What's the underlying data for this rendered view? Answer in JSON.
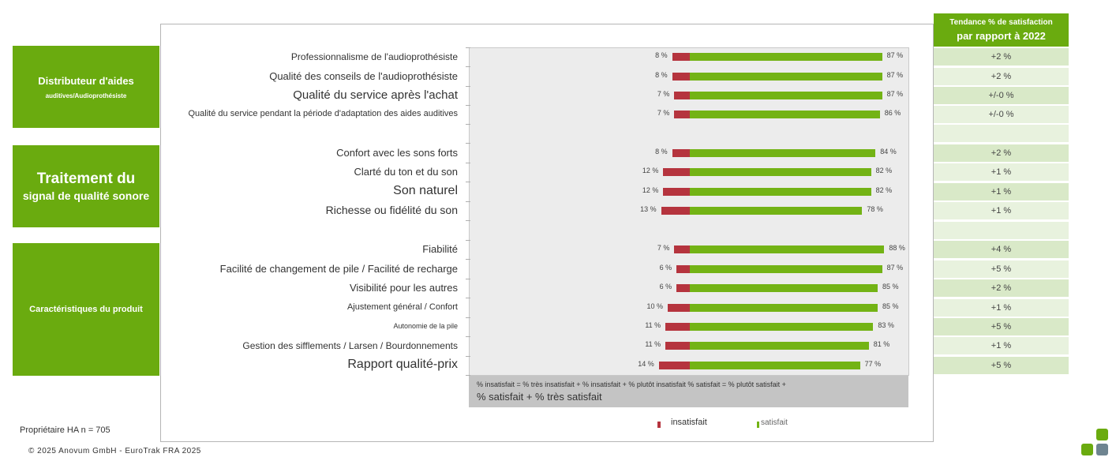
{
  "sections": [
    {
      "line1": "Distributeur d'aides",
      "line2": "auditives/Audioprothésiste"
    },
    {
      "line1": "Traitement du",
      "line2": "signal de qualité sonore"
    },
    {
      "line1": "Caractéristiques du produit",
      "line2": ""
    }
  ],
  "trend_header": {
    "line1": "Tendance % de satisfaction",
    "line2": "par rapport à 2022"
  },
  "chart_data": {
    "type": "bar",
    "orientation": "horizontal",
    "stacked": "diverging",
    "categories": [
      "Professionnalisme de l'audioprothésiste",
      "Qualité des conseils de l'audioprothésiste",
      "Qualité du service après l'achat",
      "Qualité du service pendant la période d'adaptation des aides auditives",
      "Confort avec les sons forts",
      "Clarté du ton et du son",
      "Son naturel",
      "Richesse ou fidélité du son",
      "Fiabilité",
      "Facilité de changement de pile / Facilité de recharge",
      "Visibilité pour les autres",
      "Ajustement général / Confort",
      "Autonomie de la pile",
      "Gestion des sifflements / Larsen / Bourdonnements",
      "Rapport qualité-prix"
    ],
    "series": [
      {
        "name": "insatisfait",
        "color": "#b5343e",
        "values": [
          8,
          8,
          7,
          7,
          8,
          12,
          12,
          13,
          7,
          6,
          6,
          10,
          11,
          11,
          14
        ]
      },
      {
        "name": "satisfait",
        "color": "#73b315",
        "values": [
          87,
          87,
          87,
          86,
          84,
          82,
          82,
          78,
          88,
          87,
          85,
          85,
          83,
          81,
          77
        ]
      }
    ],
    "dissatisfied_labels": [
      "8 %",
      "8 %",
      "7 %",
      "7 %",
      "8 %",
      "12 %",
      "12 %",
      "13 %",
      "7 %",
      "6 %",
      "6 %",
      "10 %",
      "11 %",
      "11 %",
      "14 %"
    ],
    "satisfied_labels": [
      "87 %",
      "87 %",
      "87 %",
      "86 %",
      "84 %",
      "82 %",
      "82 %",
      "78 %",
      "88 %",
      "87 %",
      "85 %",
      "85 %",
      "83 %",
      "81 %",
      "77 %"
    ],
    "trend_values": [
      "+2 %",
      "+2 %",
      "+/-0 %",
      "+/-0 %",
      "+2 %",
      "+1 %",
      "+1 %",
      "+1 %",
      "+4 %",
      "+5 %",
      "+2 %",
      "+1 %",
      "+5 %",
      "+1 %",
      "+5 %"
    ],
    "legend": [
      "insatisfait",
      "satisfait"
    ],
    "legend_position": "bottom"
  },
  "notes": {
    "line1": "% insatisfait = % très insatisfait + % insatisfait + % plutôt insatisfait % satisfait = % plutôt satisfait +",
    "line2": "% satisfait + % très satisfait"
  },
  "sample": "Propriétaire HA n = 705",
  "copyright": "© 2025 Anovum GmbH - EuroTrak FRA 2025",
  "colors": {
    "accent": "#6aab0f",
    "satisfied": "#73b315",
    "dissatisfied": "#b5343e"
  }
}
